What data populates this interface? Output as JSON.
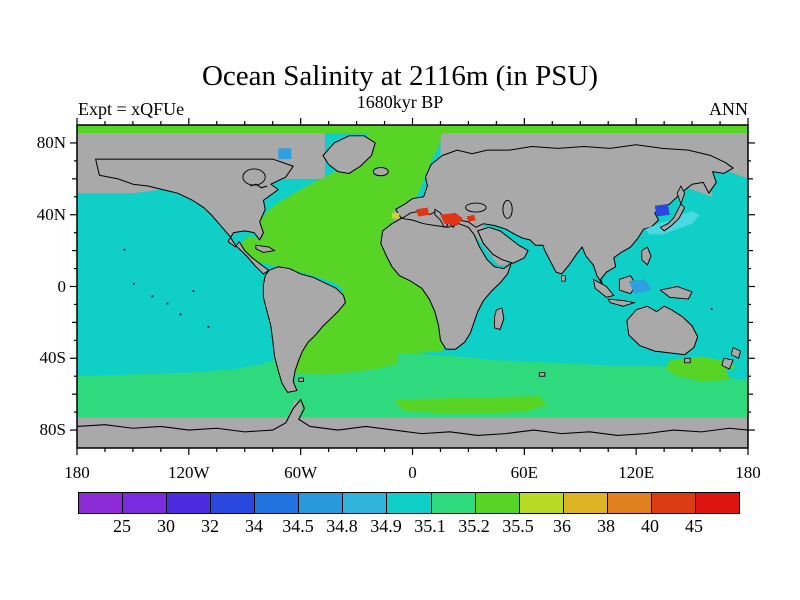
{
  "header": {
    "title": "Ocean Salinity at 2116m (in PSU)",
    "subtitle": "1680kyr BP",
    "experiment_label": "Expt = xQFUe",
    "season_label": "ANN"
  },
  "palette": {
    "land": "#a9a9a9",
    "coast": "#000000",
    "ocean_cyan": "#0fcfc6",
    "green": "#58d426",
    "spring_green": "#2eda7d",
    "pale_cyan": "#4ad8e2",
    "blue_deep": "#2a47e0",
    "blue_light": "#2f9fe0",
    "cyan_blue": "#2fb3dc",
    "yellow": "#c8d926",
    "red": "#e03414"
  },
  "chart_data": {
    "type": "heatmap",
    "title": "Ocean Salinity at 2116m (in PSU)",
    "subtitle": "1680kyr BP",
    "experiment": "Expt = xQFUe",
    "season": "ANN",
    "units": "PSU",
    "depth_m": 2116,
    "x_axis": {
      "ticks": [
        {
          "deg": -180,
          "label": "180"
        },
        {
          "deg": -120,
          "label": "120W"
        },
        {
          "deg": -60,
          "label": "60W"
        },
        {
          "deg": 0,
          "label": "0"
        },
        {
          "deg": 60,
          "label": "60E"
        },
        {
          "deg": 120,
          "label": "120E"
        },
        {
          "deg": 180,
          "label": "180"
        }
      ],
      "minor_tick_step_deg": 15
    },
    "y_axis": {
      "ticks": [
        {
          "deg": 80,
          "label": "80N"
        },
        {
          "deg": 40,
          "label": "40N"
        },
        {
          "deg": 0,
          "label": "0"
        },
        {
          "deg": -40,
          "label": "40S"
        },
        {
          "deg": -80,
          "label": "80S"
        }
      ],
      "minor_tick_step_deg": 10
    },
    "colorbar": {
      "levels": [
        "25",
        "30",
        "32",
        "34",
        "34.5",
        "34.8",
        "34.9",
        "35.1",
        "35.2",
        "35.5",
        "36",
        "38",
        "40",
        "45"
      ],
      "colors": [
        "#8d2bd9",
        "#7a2be0",
        "#4a2bdd",
        "#2a47e0",
        "#2272e0",
        "#2899dd",
        "#2fb3dc",
        "#0fcfc6",
        "#2eda7d",
        "#58d426",
        "#b8d926",
        "#dcb426",
        "#e0801f",
        "#dc3c14",
        "#dd1410"
      ]
    },
    "regions": [
      {
        "name": "pacific-indian-ocean-bulk",
        "salinity_psu": "34.9-35.1",
        "color": "#0fcfc6"
      },
      {
        "name": "north-atlantic-and-arctic-band",
        "salinity_psu": "35.2-35.5",
        "color": "#58d426"
      },
      {
        "name": "southern-ocean-band",
        "salinity_psu": "35.1-35.2",
        "color": "#2eda7d"
      },
      {
        "name": "south-atlantic-falklands-patch",
        "salinity_psu": "35.2-35.5",
        "color": "#58d426"
      },
      {
        "name": "mediterranean-high-salinity-patches",
        "salinity_psu": "40-45",
        "color": "#e03414"
      },
      {
        "name": "gibraltar-outflow-patch",
        "salinity_psu": "35.5-36",
        "color": "#c8d926"
      },
      {
        "name": "sea-of-japan-low-salinity-patch",
        "salinity_psu": "32-34",
        "color": "#2a47e0"
      },
      {
        "name": "baffin-bay-patch",
        "salinity_psu": "34.5-34.8",
        "color": "#2f9fe0"
      },
      {
        "name": "banda-sea-patch",
        "salinity_psu": "34.5-34.8",
        "color": "#2f9fe0"
      },
      {
        "name": "kuroshio-pale-cyan-band",
        "salinity_psu": "34.8-34.9",
        "color": "#4ad8e2"
      },
      {
        "name": "land-and-shallow-shelves-no-data",
        "salinity_psu": "",
        "color": "#a9a9a9"
      }
    ]
  }
}
